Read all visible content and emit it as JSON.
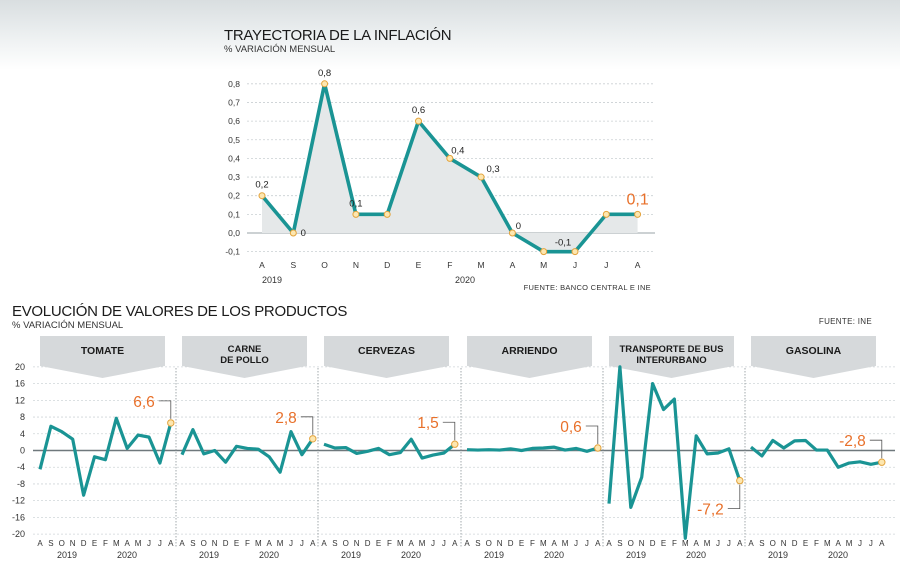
{
  "top_chart": {
    "title": "TRAYECTORIA DE LA INFLACIÓN",
    "subtitle": "% VARIACIÓN MENSUAL",
    "source": "FUENTE: BANCO CENTRAL E INE",
    "year_labels": [
      "2019",
      "2020"
    ]
  },
  "bottom_chart": {
    "title": "EVOLUCIÓN DE VALORES DE LOS PRODUCTOS",
    "subtitle": "% VARIACIÓN MENSUAL",
    "source": "FUENTE: INE",
    "year_labels": [
      "2019",
      "2020"
    ]
  },
  "colors": {
    "line": "#1a9494",
    "marker_fill": "#fde7b0",
    "marker_stroke": "#e3a33c",
    "highlight": "#e8702a",
    "area": "#e5e8e9",
    "banner": "#d6d9db"
  },
  "chart_data": [
    {
      "type": "area",
      "title": "TRAYECTORIA DE LA INFLACIÓN",
      "ylabel": "% VARIACIÓN MENSUAL",
      "categories": [
        "A",
        "S",
        "O",
        "N",
        "D",
        "E",
        "F",
        "M",
        "A",
        "M",
        "J",
        "J",
        "A"
      ],
      "values": [
        0.2,
        0,
        0.8,
        0.1,
        0.1,
        0.6,
        0.4,
        0.3,
        0,
        -0.1,
        -0.1,
        0.1,
        0.1
      ],
      "point_labels": [
        "0,2",
        "0",
        "0,8",
        "0,1",
        "",
        "0,6",
        "0,4",
        "0,3",
        "0",
        "",
        "-0,1",
        "",
        "0,1"
      ],
      "yticks": [
        "0,8",
        "0,7",
        "0,6",
        "0,5",
        "0,4",
        "0,3",
        "0,2",
        "0,1",
        "0,0",
        "-0,1"
      ],
      "ylim": [
        -0.1,
        0.8
      ],
      "grid": true
    },
    {
      "type": "line",
      "title": "EVOLUCIÓN DE VALORES DE LOS PRODUCTOS",
      "ylabel": "% VARIACIÓN MENSUAL",
      "ylim": [
        -20,
        20
      ],
      "yticks": [
        "20",
        "16",
        "12",
        "8",
        "4",
        "0",
        "-4",
        "-8",
        "-12",
        "-16",
        "-20"
      ],
      "grid": true,
      "categories": [
        "A",
        "S",
        "O",
        "N",
        "D",
        "E",
        "F",
        "M",
        "A",
        "M",
        "J",
        "J",
        "A"
      ],
      "panels": [
        {
          "name": "TOMATE",
          "values": [
            -4.5,
            5.8,
            4.5,
            2.7,
            -10.7,
            -1.5,
            -2.2,
            7.7,
            0.5,
            3.7,
            3.2,
            -3,
            6.6
          ],
          "callouts": [
            {
              "label": "6,6",
              "index": 12
            }
          ]
        },
        {
          "name": "CARNE\nDE POLLO",
          "values": [
            -1,
            5,
            -0.8,
            0,
            -2.8,
            1,
            0.5,
            0.3,
            -1.5,
            -5.2,
            4.5,
            -1,
            2.8
          ],
          "callouts": [
            {
              "label": "2,8",
              "index": 12
            }
          ]
        },
        {
          "name": "CERVEZAS",
          "values": [
            1.5,
            0.6,
            0.7,
            -0.7,
            -0.2,
            0.5,
            -1,
            -0.5,
            2.7,
            -1.8,
            -1.1,
            -0.6,
            1.5
          ],
          "callouts": [
            {
              "label": "1,5",
              "index": 12
            }
          ]
        },
        {
          "name": "ARRIENDO",
          "values": [
            0.2,
            0.1,
            0.2,
            0.1,
            0.4,
            0,
            0.5,
            0.6,
            0.8,
            0.1,
            0.5,
            -0.2,
            0.6
          ],
          "callouts": [
            {
              "label": "0,6",
              "index": 12
            }
          ]
        },
        {
          "name": "TRANSPORTE DE BUS\nINTERURBANO",
          "values": [
            -12.7,
            20,
            -13.6,
            -6.4,
            16,
            9.8,
            12.3,
            -21,
            3.5,
            -0.8,
            -0.6,
            0.4,
            -7.2
          ],
          "callouts": [
            {
              "label": "-7,2",
              "index": 12
            }
          ]
        },
        {
          "name": "GASOLINA",
          "values": [
            0.8,
            -1.3,
            2.4,
            0.6,
            2.3,
            2.4,
            0.1,
            0.1,
            -4,
            -3,
            -2.7,
            -3.3,
            -2.8
          ],
          "callouts": [
            {
              "label": "-2,8",
              "index": 12
            }
          ]
        }
      ]
    }
  ]
}
